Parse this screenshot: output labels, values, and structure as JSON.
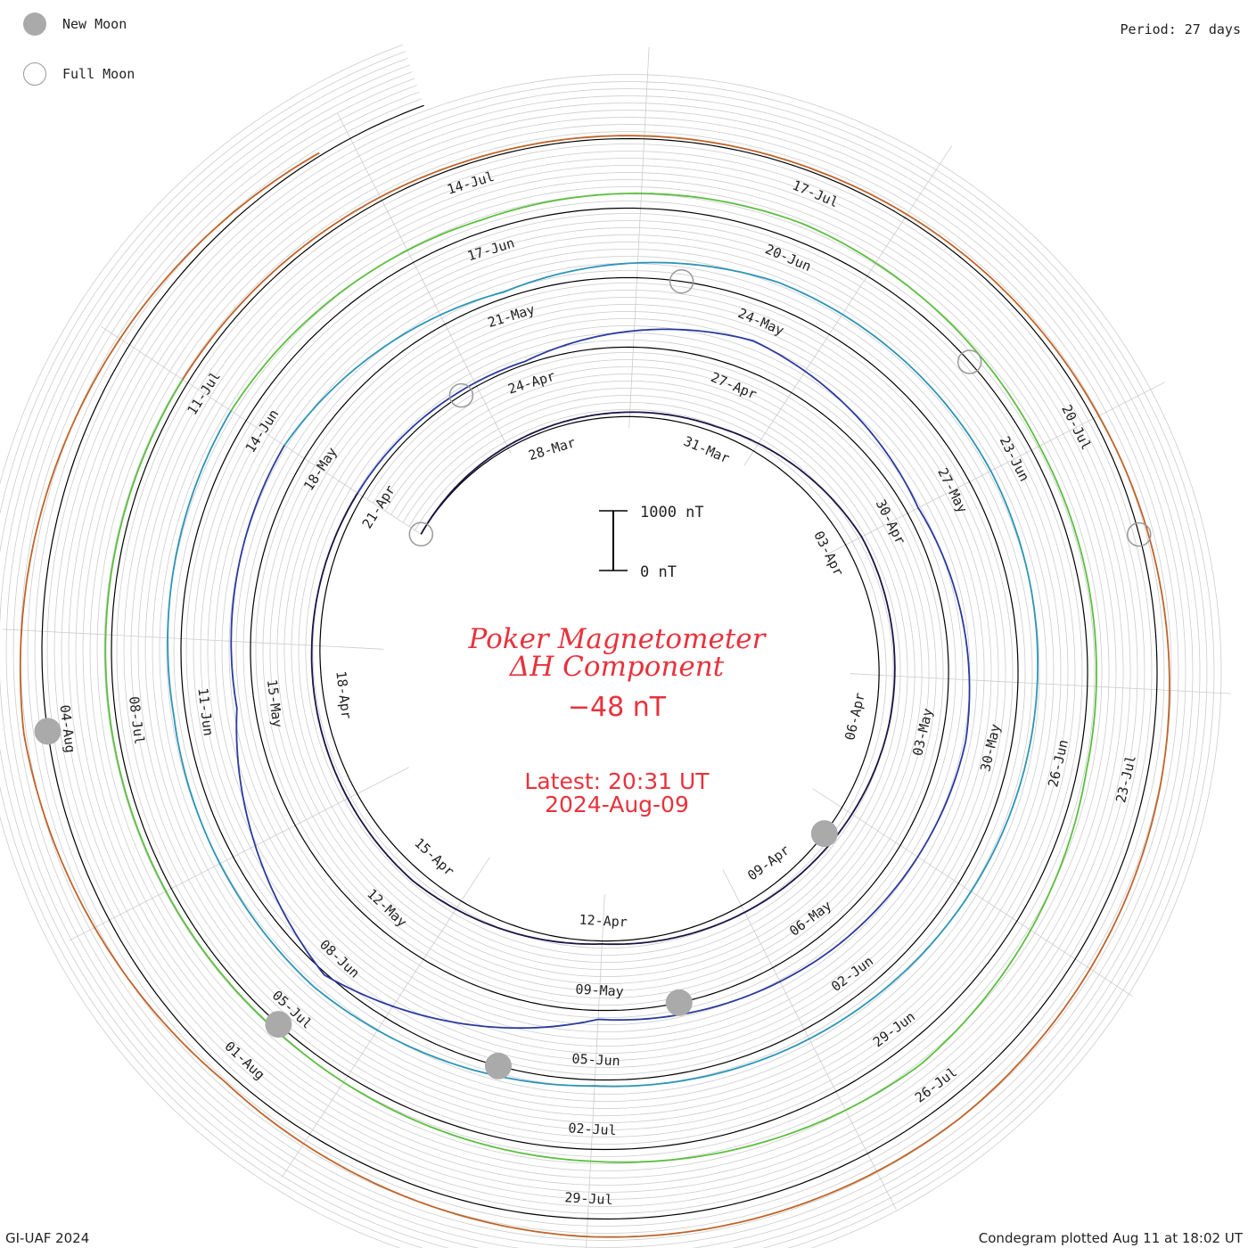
{
  "legend": [
    {
      "label": "New Moon",
      "icon": "new-moon-icon",
      "fill": "#aaaaaa",
      "stroke": "#aaaaaa"
    },
    {
      "label": "Full Moon",
      "icon": "full-moon-icon",
      "fill": "#ffffff",
      "stroke": "#999999"
    }
  ],
  "period_label": "Period: 27 days",
  "credit": "GI-UAF 2024",
  "plotted_label": "Condegram plotted Aug 11 at 18:02 UT",
  "title": {
    "line1": "Poker Magnetometer",
    "line2": "ΔH Component",
    "value": "−48 nT",
    "latest": "Latest: 20:31 UT",
    "date": "2024-Aug-09"
  },
  "scale_bar": {
    "top_label": "1000 nT",
    "bottom_label": "0 nT"
  },
  "colors": {
    "title": "#e8323c",
    "grid": "#cccccc",
    "baseline": "#000000",
    "moon": "#aaaaaa"
  },
  "chart_data": {
    "type": "line",
    "title": "Poker Magnetometer ΔH Component",
    "subtitle": "Period: 27 days",
    "units": "nT",
    "scale": [
      0,
      1000
    ],
    "current_value": -48,
    "x_range": [
      "2024-03-25",
      "2024-08-09"
    ],
    "date_labels": [
      "28-Mar",
      "31-Mar",
      "03-Apr",
      "06-Apr",
      "09-Apr",
      "12-Apr",
      "15-Apr",
      "18-Apr",
      "21-Apr",
      "24-Apr",
      "27-Apr",
      "30-Apr",
      "03-May",
      "06-May",
      "09-May",
      "12-May",
      "15-May",
      "18-May",
      "21-May",
      "24-May",
      "27-May",
      "30-May",
      "02-Jun",
      "05-Jun",
      "08-Jun",
      "11-Jun",
      "14-Jun",
      "17-Jun",
      "20-Jun",
      "23-Jun",
      "26-Jun",
      "29-Jun",
      "02-Jul",
      "05-Jul",
      "08-Jul",
      "11-Jul",
      "14-Jul",
      "17-Jul",
      "20-Jul",
      "23-Jul",
      "26-Jul",
      "29-Jul",
      "01-Aug",
      "04-Aug"
    ],
    "series": [
      {
        "values": [
          {
            "x": "2024-03-25",
            "y": 0
          },
          {
            "x": "2024-03-28",
            "y": -50
          },
          {
            "x": "2024-03-31",
            "y": -100
          },
          {
            "x": "2024-04-03",
            "y": -300
          },
          {
            "x": "2024-04-06",
            "y": -250
          },
          {
            "x": "2024-04-09",
            "y": -150
          },
          {
            "x": "2024-04-12",
            "y": -50
          },
          {
            "x": "2024-04-15",
            "y": -200
          },
          {
            "x": "2024-04-18",
            "y": -150
          },
          {
            "x": "2024-04-21",
            "y": -100
          }
        ]
      },
      {
        "values": [
          {
            "x": "2024-04-21",
            "y": -100
          },
          {
            "x": "2024-04-24",
            "y": -50
          },
          {
            "x": "2024-04-27",
            "y": -500
          },
          {
            "x": "2024-04-30",
            "y": -200
          },
          {
            "x": "2024-05-03",
            "y": -400
          },
          {
            "x": "2024-05-06",
            "y": -300
          },
          {
            "x": "2024-05-09",
            "y": -150
          },
          {
            "x": "2024-05-12",
            "y": -1200
          },
          {
            "x": "2024-05-15",
            "y": -300
          },
          {
            "x": "2024-05-18",
            "y": -400
          }
        ]
      },
      {
        "values": [
          {
            "x": "2024-05-18",
            "y": -400
          },
          {
            "x": "2024-05-21",
            "y": -100
          },
          {
            "x": "2024-05-24",
            "y": -400
          },
          {
            "x": "2024-05-27",
            "y": -400
          },
          {
            "x": "2024-05-30",
            "y": -300
          },
          {
            "x": "2024-06-02",
            "y": -200
          },
          {
            "x": "2024-06-05",
            "y": -100
          },
          {
            "x": "2024-06-08",
            "y": -300
          },
          {
            "x": "2024-06-11",
            "y": -200
          },
          {
            "x": "2024-06-14",
            "y": -300
          }
        ]
      },
      {
        "values": [
          {
            "x": "2024-06-14",
            "y": -300
          },
          {
            "x": "2024-06-17",
            "y": -200
          },
          {
            "x": "2024-06-20",
            "y": -300
          },
          {
            "x": "2024-06-23",
            "y": -150
          },
          {
            "x": "2024-06-26",
            "y": -150
          },
          {
            "x": "2024-06-29",
            "y": -400
          },
          {
            "x": "2024-07-02",
            "y": -200
          },
          {
            "x": "2024-07-05",
            "y": -100
          },
          {
            "x": "2024-07-08",
            "y": -100
          },
          {
            "x": "2024-07-11",
            "y": -100
          }
        ]
      },
      {
        "values": [
          {
            "x": "2024-07-11",
            "y": -100
          },
          {
            "x": "2024-07-14",
            "y": -50
          },
          {
            "x": "2024-07-17",
            "y": -50
          },
          {
            "x": "2024-07-20",
            "y": -100
          },
          {
            "x": "2024-07-23",
            "y": -250
          },
          {
            "x": "2024-07-26",
            "y": -350
          },
          {
            "x": "2024-07-29",
            "y": -300
          },
          {
            "x": "2024-08-01",
            "y": -150
          },
          {
            "x": "2024-08-04",
            "y": -400
          },
          {
            "x": "2024-08-09",
            "y": -48
          }
        ]
      }
    ],
    "new_moons": [
      "2024-04-08",
      "2024-05-08",
      "2024-06-06",
      "2024-07-05",
      "2024-08-04"
    ],
    "full_moons": [
      "2024-03-25",
      "2024-04-23",
      "2024-05-23",
      "2024-06-22",
      "2024-07-21"
    ]
  }
}
